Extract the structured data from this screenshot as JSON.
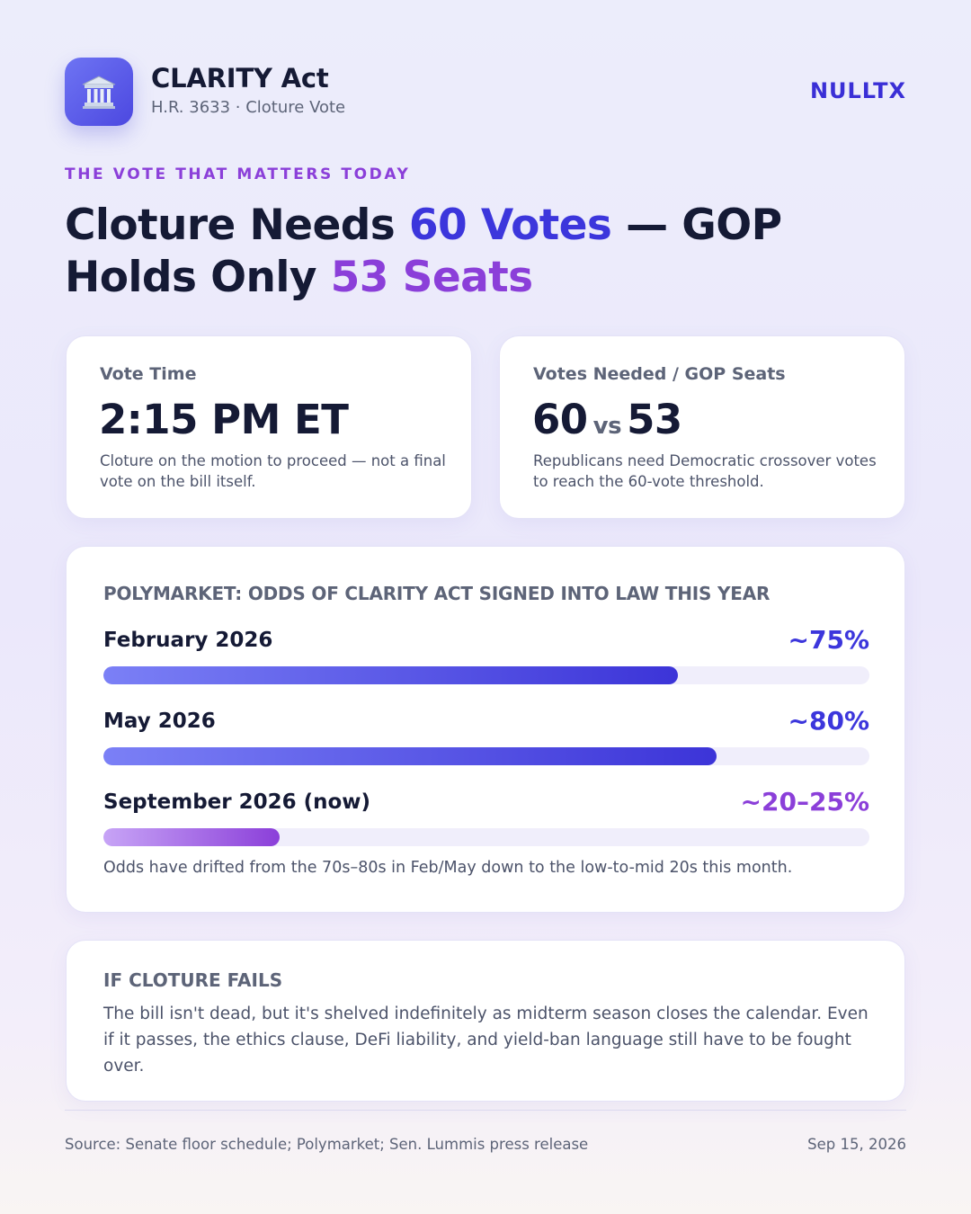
{
  "header": {
    "icon": "bank-building-icon",
    "title": "CLARITY Act",
    "subtitle": "H.R. 3633 · Cloture Vote",
    "brand": "NULLTX"
  },
  "eyebrow": "THE VOTE THAT MATTERS TODAY",
  "headline": {
    "part1": "Cloture Needs ",
    "highlight1": "60 Votes",
    "part2": " — GOP Holds Only ",
    "highlight2": "53 Seats"
  },
  "vote_time_card": {
    "label": "Vote Time",
    "value": "2:15 PM ET",
    "description": "Cloture on the motion to proceed — not a final vote on the bill itself."
  },
  "votes_card": {
    "label": "Votes Needed / GOP Seats",
    "needed": "60",
    "vs": "vs",
    "seats": "53",
    "description": "Republicans need Democratic crossover votes to reach the 60-vote threshold."
  },
  "odds": {
    "title": "POLYMARKET: ODDS OF CLARITY ACT SIGNED INTO LAW THIS YEAR",
    "rows": [
      {
        "label": "February 2026",
        "value": "~75%",
        "fill_percent": 75,
        "accent": "#3c36dc"
      },
      {
        "label": "May 2026",
        "value": "~80%",
        "fill_percent": 80,
        "accent": "#3c36dc"
      },
      {
        "label": "September 2026 (now)",
        "value": "~20–25%",
        "fill_percent": 23,
        "accent": "#8b3fd9"
      }
    ],
    "note": "Odds have drifted from the 70s–80s in Feb/May down to the low-to-mid 20s this month."
  },
  "fail_card": {
    "title": "IF CLOTURE FAILS",
    "body": "The bill isn't dead, but it's shelved indefinitely as midterm season closes the calendar. Even if it passes, the ethics clause, DeFi liability, and yield-ban language still have to be fought over."
  },
  "footer": {
    "source": "Source: Senate floor schedule; Polymarket; Sen. Lummis press release",
    "date": "Sep 15, 2026"
  },
  "colors": {
    "accent_blue": "#3c36dc",
    "accent_purple": "#8b3fd9",
    "text_dark": "#151a35"
  }
}
